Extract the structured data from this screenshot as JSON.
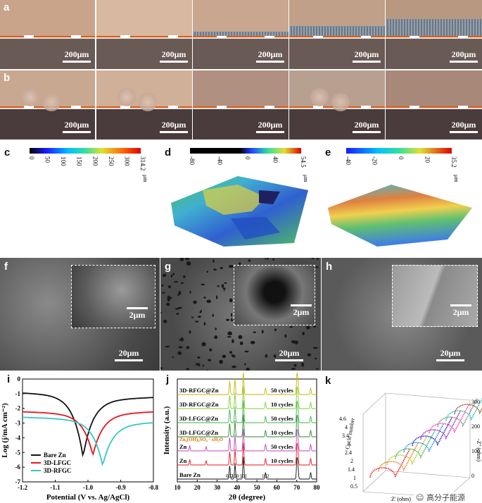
{
  "panels": {
    "a": {
      "label": "a",
      "scale": "200μm"
    },
    "b": {
      "label": "b",
      "scale": "200μm"
    },
    "c": {
      "label": "c",
      "colorbar_ticks": [
        "0",
        "50",
        "100",
        "150",
        "200",
        "250",
        "300",
        "314.2"
      ],
      "unit": "μm"
    },
    "d": {
      "label": "d",
      "colorbar_ticks": [
        "-80",
        "-40",
        "0",
        "40",
        "54.5"
      ],
      "unit": "μm"
    },
    "e": {
      "label": "e",
      "colorbar_ticks": [
        "-40",
        "-20",
        "0",
        "20",
        "35.2"
      ],
      "unit": "μm"
    },
    "f": {
      "label": "f",
      "inset_scale": "2μm",
      "scale": "20μm"
    },
    "g": {
      "label": "g",
      "inset_scale": "2μm",
      "scale": "20μm"
    },
    "h": {
      "label": "h",
      "inset_scale": "2μm",
      "scale": "20μm"
    },
    "i": {
      "label": "i"
    },
    "j": {
      "label": "j"
    },
    "k": {
      "label": "k"
    }
  },
  "chart_i": {
    "type": "line",
    "xlabel": "Potential (V vs. Ag/AgCl)",
    "ylabel": "Log (j/mA cm⁻²)",
    "xlim": [
      -1.2,
      -0.8
    ],
    "ylim": [
      -7,
      0
    ],
    "xticks": [
      "-1.2",
      "-1.1",
      "-1.0",
      "-0.9",
      "-0.8"
    ],
    "yticks": [
      "-7",
      "-6",
      "-5",
      "-4",
      "-3",
      "-2",
      "-1",
      "0"
    ],
    "series": [
      {
        "name": "Bare Zn",
        "color": "#111111",
        "Ecorr": -1.015,
        "jmin": -5.3,
        "left": -1.1,
        "right": -1.45
      },
      {
        "name": "3D-LFGC",
        "color": "#e8161b",
        "Ecorr": -0.985,
        "jmin": -5.2,
        "left": -2.4,
        "right": -2.4
      },
      {
        "name": "3D-RFGC",
        "color": "#38c6c6",
        "Ecorr": -0.955,
        "jmin": -5.9,
        "left": -2.8,
        "right": -3.1
      }
    ]
  },
  "chart_j": {
    "type": "line",
    "xlabel": "2θ (degree)",
    "ylabel": "Intensity (a.u.)",
    "xlim": [
      10,
      80
    ],
    "xticks": [
      "10",
      "20",
      "30",
      "40",
      "50",
      "60",
      "70",
      "80"
    ],
    "traces": [
      {
        "label": "Bare Zn",
        "cycles": "",
        "color": "#111111"
      },
      {
        "label": "Zn",
        "cycles": "10 cycles",
        "color": "#e8161b"
      },
      {
        "label": "Zn",
        "cycles": "50 cycles",
        "color": "#c040c0"
      },
      {
        "label": "3D-LFGC@Zn",
        "cycles": "10 cycles",
        "color": "#2a8a2a"
      },
      {
        "label": "3D-LFGC@Zn",
        "cycles": "50 cycles",
        "color": "#3cb44b"
      },
      {
        "label": "3D-RFGC@Zn",
        "cycles": "10 cycles",
        "color": "#7fd02a"
      },
      {
        "label": "3D-RFGC@Zn",
        "cycles": "50 cycles",
        "color": "#c8b400"
      }
    ],
    "peaks": [
      "002",
      "100",
      "101",
      "102"
    ],
    "byproduct": "Zn₄(OH)₆SO₄ · xH₂O"
  },
  "chart_k": {
    "type": "line",
    "xlabel": "Z' (ohm)",
    "ylabel": "-Z'' (ohm)",
    "depth_label": "Cycle number",
    "zticks": [
      "0",
      "100",
      "200",
      "300"
    ],
    "depth_ticks": [
      "0.5",
      "1",
      "1.4",
      "2",
      "2.4",
      "3",
      "3.4",
      "4",
      "4.6"
    ],
    "colors": [
      "#e8161b",
      "#f07818",
      "#c0c020",
      "#3cb44b",
      "#1e90ff",
      "#2020c0",
      "#a020c0",
      "#ff40a0",
      "#808080",
      "#20c0c0",
      "#905020"
    ]
  },
  "watermark": "高分子能源"
}
